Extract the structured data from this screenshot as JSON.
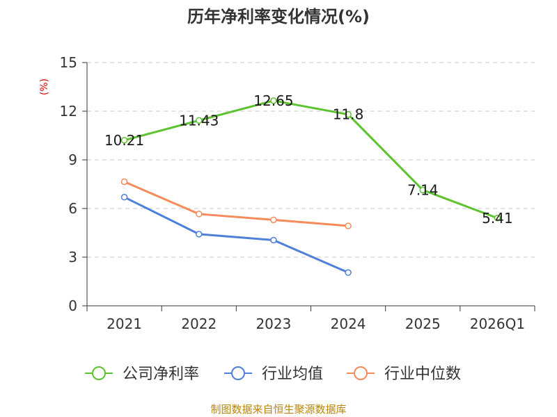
{
  "chart_data": {
    "type": "line",
    "title": "历年净利率变化情况(%)",
    "ylabel": "(%)",
    "xlabel": "",
    "categories": [
      "2021",
      "2022",
      "2023",
      "2024",
      "2025",
      "2026Q1"
    ],
    "ylim": [
      0,
      15
    ],
    "yticks": [
      0,
      3,
      6,
      9,
      12,
      15
    ],
    "grid": true,
    "legend_position": "bottom",
    "series": [
      {
        "name": "公司净利率",
        "color": "#5cc22e",
        "values": [
          10.21,
          11.43,
          12.65,
          11.8,
          7.14,
          5.41
        ],
        "labels": [
          "10.21",
          "11.43",
          "12.65",
          "11.8",
          "7.14",
          "5.41"
        ]
      },
      {
        "name": "行业均值",
        "color": "#4f7fd9",
        "values": [
          6.7,
          4.42,
          4.05,
          2.05,
          null,
          null
        ]
      },
      {
        "name": "行业中位数",
        "color": "#f58b5a",
        "values": [
          7.65,
          5.66,
          5.3,
          4.93,
          null,
          null
        ]
      }
    ]
  },
  "source": "制图数据来自恒生聚源数据库"
}
